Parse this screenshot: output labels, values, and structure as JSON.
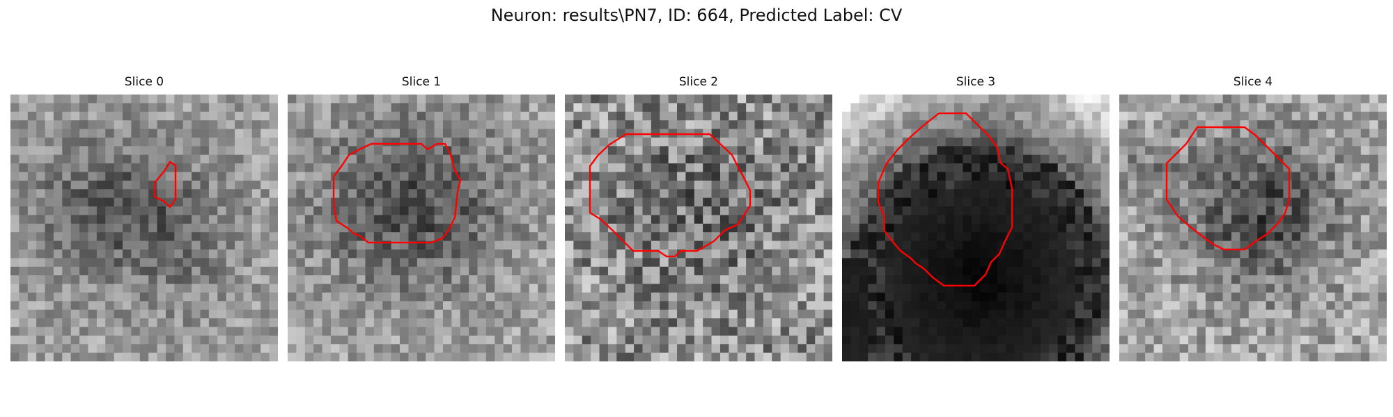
{
  "figure": {
    "title": "Neuron: results\\PN7, ID: 664, Predicted Label: CV",
    "contour_color": "#ff0000",
    "colormap": "gray"
  },
  "panels": [
    {
      "title": "Slice 0",
      "icon": "grayscale-microscopy-image"
    },
    {
      "title": "Slice 1",
      "icon": "grayscale-microscopy-image"
    },
    {
      "title": "Slice 2",
      "icon": "grayscale-microscopy-image"
    },
    {
      "title": "Slice 3",
      "icon": "grayscale-microscopy-image"
    },
    {
      "title": "Slice 4",
      "icon": "grayscale-microscopy-image"
    }
  ]
}
